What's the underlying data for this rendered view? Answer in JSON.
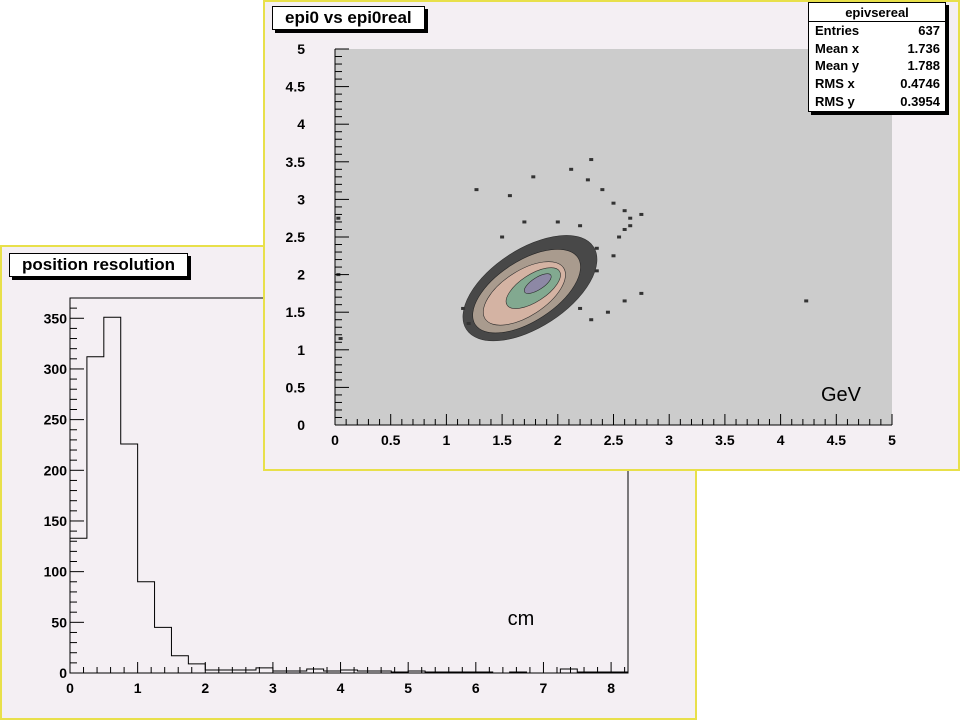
{
  "colors": {
    "canvas_bg": "#f4eff3",
    "canvas_border": "#e8e04a",
    "frame_bg": "#cccccc",
    "contour_fills": [
      "#3a3a3a",
      "#b4a496",
      "#d9b6a6",
      "#7aa88e",
      "#8f85a8"
    ]
  },
  "chart_data": [
    {
      "type": "histogram",
      "title": "position resolution",
      "unit_label": "cm",
      "xlim": [
        0,
        8.25
      ],
      "ylim": [
        0,
        370
      ],
      "xticks": [
        "0",
        "1",
        "2",
        "3",
        "4",
        "5",
        "6",
        "7",
        "8"
      ],
      "yticks": [
        "0",
        "50",
        "100",
        "150",
        "200",
        "250",
        "300",
        "350"
      ],
      "bin_width": 0.25,
      "values": [
        133,
        312,
        351,
        226,
        90,
        45,
        17,
        9,
        3,
        3,
        3,
        5,
        2,
        2,
        4,
        2,
        3,
        2,
        2,
        1,
        2,
        1,
        1,
        1,
        1,
        0,
        1,
        0,
        0,
        4,
        1,
        1,
        1
      ]
    },
    {
      "type": "heatmap",
      "title": "epi0 vs epi0real",
      "unit_label": "GeV",
      "xlim": [
        0,
        5
      ],
      "ylim": [
        0,
        5
      ],
      "xticks": [
        "0",
        "0.5",
        "1",
        "1.5",
        "2",
        "2.5",
        "3",
        "3.5",
        "4",
        "4.5",
        "5"
      ],
      "yticks": [
        "0",
        "0.5",
        "1",
        "1.5",
        "2",
        "2.5",
        "3",
        "3.5",
        "4",
        "4.5",
        "5"
      ],
      "stats": {
        "name": "epivsereal",
        "rows": [
          {
            "label": "Entries",
            "value": "637"
          },
          {
            "label": "Mean x",
            "value": "1.736"
          },
          {
            "label": "Mean y",
            "value": "1.788"
          },
          {
            "label": "RMS x",
            "value": "0.4746"
          },
          {
            "label": "RMS y",
            "value": "0.3954"
          }
        ]
      },
      "outlier_points": [
        [
          1.27,
          3.13
        ],
        [
          1.57,
          3.05
        ],
        [
          1.78,
          3.3
        ],
        [
          2.12,
          3.4
        ],
        [
          2.3,
          3.53
        ],
        [
          2.27,
          3.26
        ],
        [
          2.4,
          3.13
        ],
        [
          2.5,
          2.95
        ],
        [
          2.6,
          2.85
        ],
        [
          2.75,
          2.8
        ],
        [
          2.65,
          2.75
        ],
        [
          2.6,
          2.6
        ],
        [
          2.55,
          2.5
        ],
        [
          2.65,
          2.65
        ],
        [
          1.7,
          2.7
        ],
        [
          2.0,
          2.7
        ],
        [
          2.2,
          2.65
        ],
        [
          2.75,
          1.75
        ],
        [
          2.6,
          1.65
        ],
        [
          2.45,
          1.5
        ],
        [
          2.3,
          1.4
        ],
        [
          2.2,
          1.55
        ],
        [
          1.15,
          1.55
        ],
        [
          1.2,
          1.35
        ],
        [
          4.23,
          1.65
        ],
        [
          0.03,
          2.75
        ],
        [
          0.03,
          2.0
        ],
        [
          0.05,
          1.15
        ],
        [
          2.35,
          2.05
        ],
        [
          2.5,
          2.25
        ],
        [
          2.35,
          2.35
        ],
        [
          1.5,
          2.5
        ]
      ]
    }
  ]
}
